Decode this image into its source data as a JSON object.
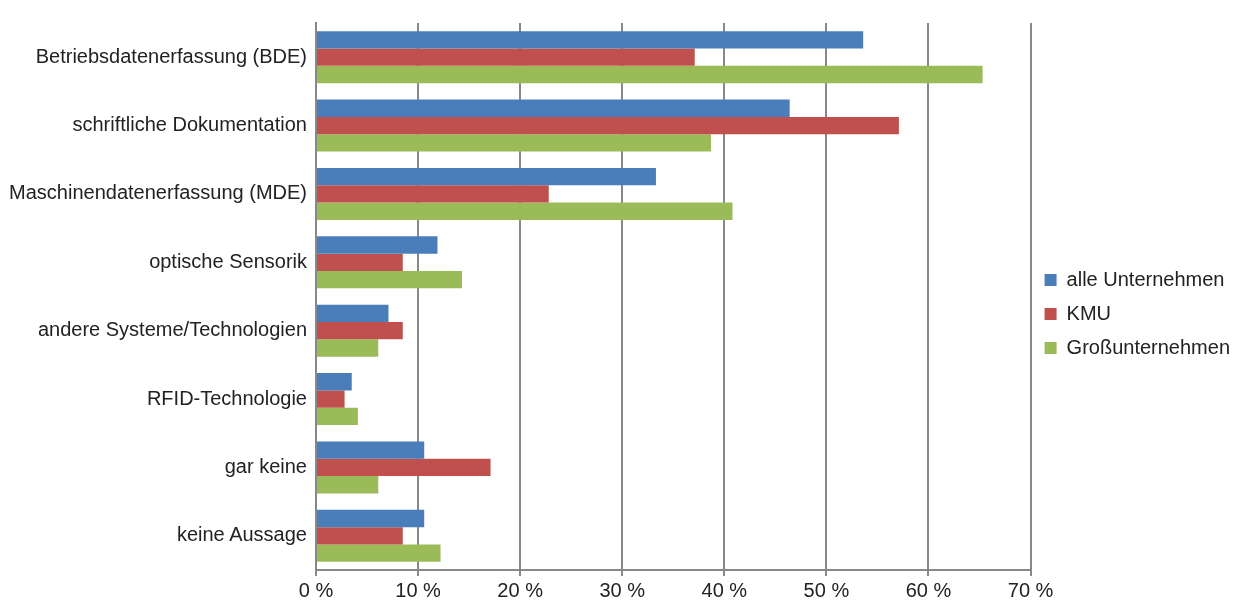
{
  "chart_data": {
    "type": "bar",
    "orientation": "horizontal",
    "categories": [
      "Betriebsdatenerfassung (BDE)",
      "schriftliche Dokumentation",
      "Maschinendatenerfassung (MDE)",
      "optische Sensorik",
      "andere Systeme/Technologien",
      "RFID-Technologie",
      "gar keine",
      "keine Aussage"
    ],
    "series": [
      {
        "name": "alle Unternehmen",
        "color": "#4a7ebb",
        "values": [
          53.6,
          46.4,
          33.3,
          11.9,
          7.1,
          3.5,
          10.6,
          10.6
        ]
      },
      {
        "name": "KMU",
        "color": "#c0504d",
        "values": [
          37.1,
          57.1,
          22.8,
          8.5,
          8.5,
          2.8,
          17.1,
          8.5
        ]
      },
      {
        "name": "Großunternehmen",
        "color": "#9bbb59",
        "values": [
          65.3,
          38.7,
          40.8,
          14.3,
          6.1,
          4.1,
          6.1,
          12.2
        ]
      }
    ],
    "xlim": [
      0,
      70
    ],
    "xticks": [
      {
        "value": 0,
        "label": "0 %"
      },
      {
        "value": 10,
        "label": "10 %"
      },
      {
        "value": 20,
        "label": "20 %"
      },
      {
        "value": 30,
        "label": "30 %"
      },
      {
        "value": 40,
        "label": "40 %"
      },
      {
        "value": 50,
        "label": "50 %"
      },
      {
        "value": 60,
        "label": "60 %"
      },
      {
        "value": 70,
        "label": "70 %"
      }
    ],
    "grid": "x",
    "legend": "right"
  }
}
